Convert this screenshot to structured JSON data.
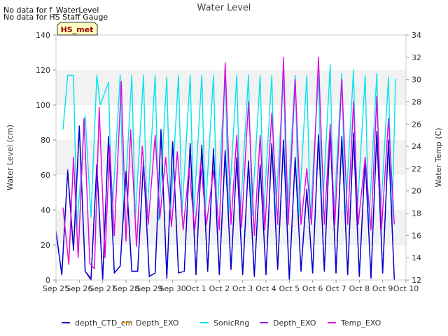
{
  "notes": [
    "No data for f_WaterLevel",
    "No data for HS Staff Gauge"
  ],
  "badge": "HS_met",
  "chart_data": {
    "type": "line",
    "title": "Water Level",
    "ylabel": "Water Level (cm)",
    "y2label": "Water Temp (C)",
    "ylim": [
      0,
      140
    ],
    "y2lim": [
      12,
      34
    ],
    "xlim": [
      0,
      15
    ],
    "yticks": [
      0,
      20,
      40,
      60,
      80,
      100,
      120,
      140
    ],
    "y2ticks": [
      12,
      14,
      16,
      18,
      20,
      22,
      24,
      26,
      28,
      30,
      32,
      34
    ],
    "categories": [
      "Sep 25",
      "Sep 26",
      "Sep 27",
      "Sep 28",
      "Sep 29",
      "Sep 30",
      "Oct 1",
      "Oct 2",
      "Oct 3",
      "Oct 4",
      "Oct 5",
      "Oct 6",
      "Oct 7",
      "Oct 8",
      "Oct 9",
      "Oct 10"
    ],
    "grid": "horizontal bands",
    "legend": "bottom",
    "colors": {
      "depth_ctd": "#0000cc",
      "depth_exo_orange": "#ffa500",
      "sonic": "#00e5ee",
      "depth_exo": "#8a2be2",
      "temp": "#e000e0"
    },
    "series": [
      {
        "name": "depth_CTD_cm",
        "axis": "left",
        "x": [
          0,
          0.25,
          0.5,
          0.75,
          1,
          1.25,
          1.5,
          1.75,
          2,
          2.25,
          2.5,
          2.75,
          3,
          3.25,
          3.5,
          3.75,
          4,
          4.25,
          4.5,
          4.75,
          5,
          5.25,
          5.5,
          5.75,
          6,
          6.25,
          6.5,
          6.75,
          7,
          7.25,
          7.5,
          7.75,
          8,
          8.25,
          8.5,
          8.75,
          9,
          9.25,
          9.5,
          9.75,
          10,
          10.25,
          10.5,
          10.75,
          11,
          11.25,
          11.5,
          11.75,
          12,
          12.25,
          12.5,
          12.75,
          13,
          13.25,
          13.5,
          13.75,
          14,
          14.25,
          14.5
        ],
        "values": [
          28,
          3,
          62,
          17,
          88,
          5,
          0,
          66,
          0,
          82,
          4,
          8,
          62,
          5,
          5,
          68,
          2,
          4,
          86,
          1,
          79,
          4,
          5,
          78,
          3,
          77,
          5,
          75,
          3,
          74,
          6,
          70,
          3,
          68,
          2,
          66,
          3,
          78,
          6,
          80,
          0,
          70,
          5,
          52,
          4,
          83,
          5,
          86,
          4,
          82,
          3,
          84,
          2,
          70,
          1,
          85,
          4,
          80,
          0
        ]
      },
      {
        "name": "Depth_EXO",
        "axis": "left",
        "x": [
          0,
          0.25,
          0.5,
          0.75,
          1,
          1.25,
          1.5,
          1.75,
          2,
          2.25,
          2.5,
          2.75,
          3,
          3.25,
          3.5,
          3.75,
          4,
          4.25,
          4.5,
          4.75,
          5,
          5.25,
          5.5,
          5.75,
          6,
          6.25,
          6.5,
          6.75,
          7,
          7.25,
          7.5,
          7.75,
          8,
          8.25,
          8.5,
          8.75,
          9,
          9.25,
          9.5,
          9.75,
          10,
          10.25,
          10.5,
          10.75,
          11,
          11.25,
          11.5,
          11.75,
          12,
          12.25,
          12.5,
          12.75,
          13,
          13.25,
          13.5,
          13.75,
          14,
          14.25,
          14.5
        ],
        "values": [
          27,
          3,
          63,
          17,
          87,
          5,
          1,
          65,
          1,
          81,
          4,
          8,
          61,
          5,
          5,
          67,
          2,
          4,
          85,
          1,
          78,
          4,
          5,
          77,
          3,
          76,
          5,
          74,
          3,
          73,
          6,
          69,
          3,
          67,
          2,
          65,
          3,
          77,
          6,
          79,
          1,
          69,
          5,
          51,
          4,
          82,
          5,
          85,
          4,
          81,
          3,
          83,
          2,
          69,
          1,
          84,
          4,
          79,
          1
        ]
      },
      {
        "name": "SonicRng",
        "axis": "left",
        "x": [
          0.3,
          0.5,
          0.75,
          0.9,
          1.25,
          1.5,
          1.75,
          1.9,
          2.25,
          2.4,
          2.75,
          2.9,
          3.25,
          3.4,
          3.75,
          3.9,
          4.25,
          4.4,
          4.75,
          4.9,
          5.25,
          5.4,
          5.75,
          5.9,
          6.25,
          6.4,
          6.75,
          6.9,
          7.25,
          7.4,
          7.75,
          7.9,
          8.25,
          8.4,
          8.75,
          8.9,
          9.25,
          9.4,
          9.75,
          9.9,
          10.25,
          10.4,
          10.75,
          10.9,
          11.25,
          11.4,
          11.75,
          11.9,
          12.25,
          12.4,
          12.75,
          12.9,
          13.25,
          13.4,
          13.75,
          13.9,
          14.25,
          14.4,
          14.55
        ],
        "values": [
          86,
          117,
          117,
          30,
          94,
          36,
          117,
          100,
          113,
          35,
          117,
          34,
          117,
          35,
          117,
          35,
          117,
          34,
          116,
          35,
          117,
          38,
          117,
          37,
          117,
          38,
          117,
          37,
          117,
          38,
          117,
          37,
          117,
          37,
          117,
          38,
          117,
          35,
          117,
          35,
          117,
          35,
          117,
          35,
          117,
          34,
          123,
          35,
          118,
          35,
          120,
          36,
          117,
          30,
          118,
          34,
          116,
          32,
          115
        ]
      },
      {
        "name": "Temp_EXO",
        "axis": "right",
        "x": [
          0.3,
          0.55,
          0.75,
          0.95,
          1.2,
          1.45,
          1.65,
          1.85,
          2.1,
          2.3,
          2.5,
          2.8,
          3.0,
          3.2,
          3.45,
          3.7,
          3.95,
          4.25,
          4.45,
          4.7,
          4.95,
          5.2,
          5.45,
          5.7,
          5.95,
          6.2,
          6.45,
          6.75,
          7.0,
          7.25,
          7.5,
          7.75,
          7.95,
          8.25,
          8.5,
          8.75,
          8.95,
          9.25,
          9.5,
          9.75,
          9.95,
          10.25,
          10.5,
          10.75,
          10.95,
          11.25,
          11.5,
          11.75,
          11.95,
          12.25,
          12.5,
          12.75,
          12.95,
          13.25,
          13.5,
          13.75,
          13.95,
          14.25,
          14.5
        ],
        "values": [
          18.5,
          13.4,
          23,
          14,
          26.5,
          13.5,
          13,
          27.5,
          14,
          24,
          16,
          29.8,
          15.5,
          25.5,
          15,
          24,
          17,
          25,
          17.5,
          23,
          16.8,
          23.5,
          16.5,
          22,
          16.5,
          22.5,
          17,
          21.8,
          16.5,
          31.5,
          17,
          25,
          16.7,
          28,
          16,
          25,
          16.5,
          27,
          17,
          32,
          17,
          30,
          17,
          22,
          17,
          32,
          17,
          26,
          17,
          30,
          17,
          28,
          17,
          23,
          16.5,
          28.5,
          16.5,
          26.5,
          17
        ]
      }
    ]
  },
  "legend": [
    {
      "label": "depth_CTD_cm",
      "color": "#0000cc"
    },
    {
      "label": "Depth_EXO",
      "color": "#ffa500"
    },
    {
      "label": "SonicRng",
      "color": "#00e5ee"
    },
    {
      "label": "Depth_EXO",
      "color": "#8a2be2"
    },
    {
      "label": "Temp_EXO",
      "color": "#e000e0"
    }
  ]
}
